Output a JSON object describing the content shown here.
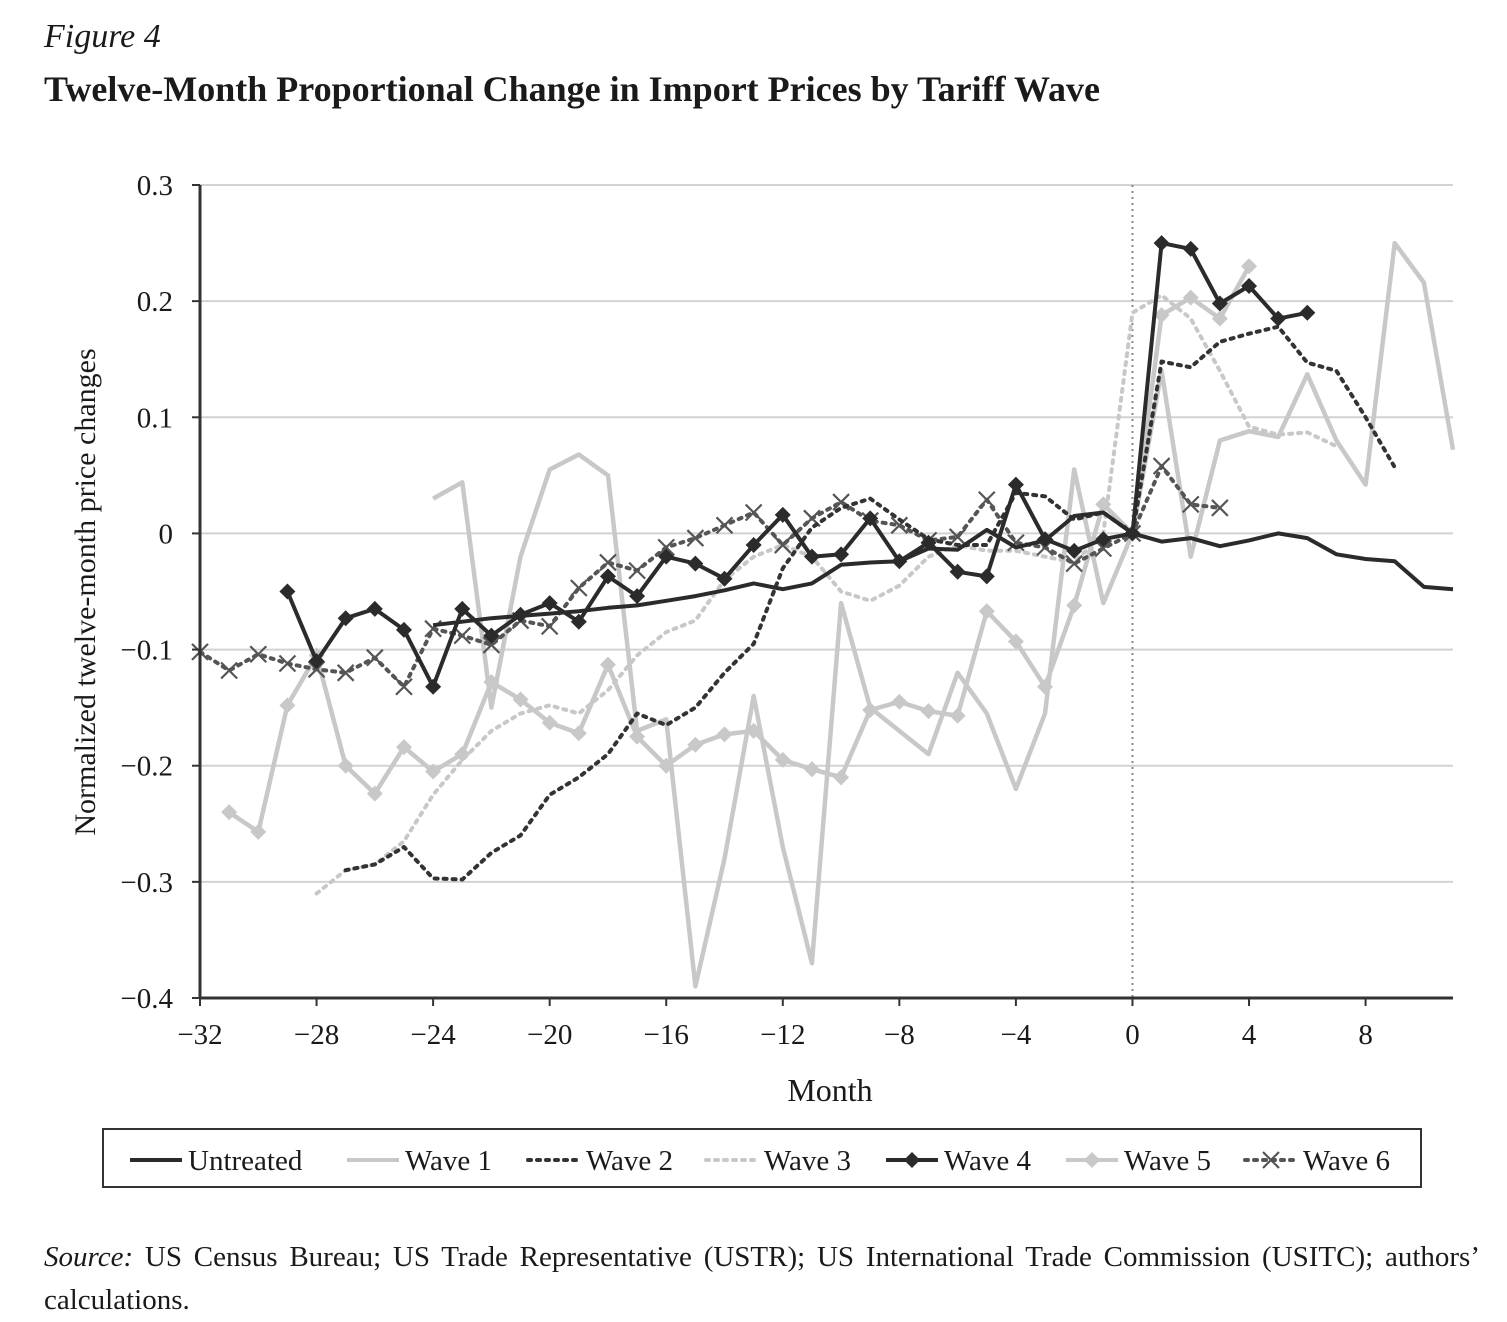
{
  "figure_label": "Figure 4",
  "title": "Twelve-Month Proportional Change in Import Prices by Tariff Wave",
  "source_label": "Source:",
  "source_text": "US Census Bureau; US Trade Representative (USTR); US International Trade Commission (USITC); authors’ calculations.",
  "chart_data": {
    "type": "line",
    "xlabel": "Month",
    "ylabel": "Normalized twelve-month price changes",
    "xlim": [
      -32,
      11
    ],
    "ylim": [
      -0.4,
      0.3
    ],
    "xticks": [
      -32,
      -28,
      -24,
      -20,
      -16,
      -12,
      -8,
      -4,
      0,
      4,
      8
    ],
    "xtick_labels": [
      "−32",
      "−28",
      "−24",
      "−20",
      "−16",
      "−12",
      "−8",
      "−4",
      "0",
      "4",
      "8"
    ],
    "yticks": [
      0.3,
      0.2,
      0.1,
      0,
      -0.1,
      -0.2,
      -0.3,
      -0.4
    ],
    "ytick_labels": [
      "0.3",
      "0.2",
      "0.1",
      "0",
      "−0.1",
      "−0.2",
      "−0.3",
      "−0.4"
    ],
    "grid": "horizontal",
    "vertical_marker_x": 0,
    "legend_position": "bottom",
    "series": [
      {
        "name": "Untreated",
        "color": "#2b2b2b",
        "style": "solid",
        "marker": "none",
        "x": [
          -24,
          -23,
          -22,
          -21,
          -20,
          -19,
          -18,
          -17,
          -16,
          -15,
          -14,
          -13,
          -12,
          -11,
          -10,
          -9,
          -8,
          -7,
          -6,
          -5,
          -4,
          -3,
          -2,
          -1,
          0,
          1,
          2,
          3,
          4,
          5,
          6,
          7,
          8,
          9,
          10,
          11
        ],
        "y": [
          -0.079,
          -0.076,
          -0.073,
          -0.071,
          -0.069,
          -0.067,
          -0.064,
          -0.062,
          -0.058,
          -0.054,
          -0.049,
          -0.043,
          -0.048,
          -0.043,
          -0.027,
          -0.025,
          -0.024,
          -0.013,
          -0.014,
          0.003,
          -0.012,
          -0.006,
          0.015,
          0.018,
          0.0,
          -0.007,
          -0.004,
          -0.011,
          -0.006,
          0.0,
          -0.004,
          -0.018,
          -0.022,
          -0.024,
          -0.046,
          -0.048
        ]
      },
      {
        "name": "Wave 1",
        "color": "#c8c8c8",
        "style": "solid",
        "marker": "none",
        "x": [
          -24,
          -23,
          -22,
          -21,
          -20,
          -19,
          -18,
          -17,
          -16,
          -15,
          -14,
          -13,
          -12,
          -11,
          -10,
          -9,
          -8,
          -7,
          -6,
          -5,
          -4,
          -3,
          -2,
          -1,
          0,
          1,
          2,
          3,
          4,
          5,
          6,
          7,
          8,
          9,
          10,
          11
        ],
        "y": [
          0.03,
          0.044,
          -0.15,
          -0.02,
          0.055,
          0.068,
          0.05,
          -0.17,
          -0.16,
          -0.39,
          -0.28,
          -0.14,
          -0.27,
          -0.37,
          -0.06,
          -0.15,
          -0.17,
          -0.19,
          -0.12,
          -0.155,
          -0.22,
          -0.155,
          0.055,
          -0.06,
          0.0,
          0.14,
          -0.02,
          0.08,
          0.088,
          0.083,
          0.137,
          0.08,
          0.042,
          0.25,
          0.216,
          0.072
        ]
      },
      {
        "name": "Wave 2",
        "color": "#333333",
        "style": "dotted",
        "marker": "none",
        "x": [
          -27,
          -26,
          -25,
          -24,
          -23,
          -22,
          -21,
          -20,
          -19,
          -18,
          -17,
          -16,
          -15,
          -14,
          -13,
          -12,
          -11,
          -10,
          -9,
          -8,
          -7,
          -6,
          -5,
          -4,
          -3,
          -2,
          -1,
          0,
          1,
          2,
          3,
          4,
          5,
          6,
          7,
          8,
          9
        ],
        "y": [
          -0.29,
          -0.285,
          -0.27,
          -0.297,
          -0.298,
          -0.275,
          -0.26,
          -0.225,
          -0.21,
          -0.19,
          -0.155,
          -0.165,
          -0.15,
          -0.12,
          -0.095,
          -0.03,
          0.005,
          0.022,
          0.03,
          0.012,
          -0.005,
          -0.01,
          -0.01,
          0.035,
          0.032,
          0.012,
          0.018,
          0.0,
          0.148,
          0.143,
          0.165,
          0.172,
          0.178,
          0.147,
          0.14,
          0.1,
          0.057
        ]
      },
      {
        "name": "Wave 3",
        "color": "#c8c8c8",
        "style": "dotted",
        "marker": "none",
        "x": [
          -28,
          -27,
          -26,
          -25,
          -24,
          -23,
          -22,
          -21,
          -20,
          -19,
          -18,
          -17,
          -16,
          -15,
          -14,
          -13,
          -12,
          -11,
          -10,
          -9,
          -8,
          -7,
          -6,
          -5,
          -4,
          -3,
          -2,
          -1,
          0,
          1,
          2,
          3,
          4,
          5,
          6,
          7
        ],
        "y": [
          -0.31,
          -0.29,
          -0.285,
          -0.265,
          -0.225,
          -0.195,
          -0.17,
          -0.155,
          -0.148,
          -0.155,
          -0.135,
          -0.105,
          -0.085,
          -0.075,
          -0.04,
          -0.02,
          -0.01,
          -0.02,
          -0.05,
          -0.058,
          -0.045,
          -0.02,
          -0.01,
          -0.015,
          -0.015,
          -0.02,
          -0.025,
          0.0,
          0.19,
          0.205,
          0.185,
          0.14,
          0.092,
          0.085,
          0.087,
          0.075
        ]
      },
      {
        "name": "Wave 4",
        "color": "#2b2b2b",
        "style": "solid",
        "marker": "diamond",
        "x": [
          -29,
          -28,
          -27,
          -26,
          -25,
          -24,
          -23,
          -22,
          -21,
          -20,
          -19,
          -18,
          -17,
          -16,
          -15,
          -14,
          -13,
          -12,
          -11,
          -10,
          -9,
          -8,
          -7,
          -6,
          -5,
          -4,
          -3,
          -2,
          -1,
          0,
          1,
          2,
          3,
          4,
          5,
          6
        ],
        "y": [
          -0.05,
          -0.11,
          -0.073,
          -0.065,
          -0.083,
          -0.132,
          -0.065,
          -0.088,
          -0.07,
          -0.06,
          -0.076,
          -0.037,
          -0.054,
          -0.02,
          -0.026,
          -0.039,
          -0.01,
          0.016,
          -0.02,
          -0.018,
          0.013,
          -0.024,
          -0.008,
          -0.033,
          -0.037,
          0.042,
          -0.005,
          -0.015,
          -0.005,
          0.0,
          0.25,
          0.245,
          0.198,
          0.213,
          0.185,
          0.19
        ]
      },
      {
        "name": "Wave 5",
        "color": "#c8c8c8",
        "style": "solid",
        "marker": "diamond",
        "x": [
          -31,
          -30,
          -29,
          -28,
          -27,
          -26,
          -25,
          -24,
          -23,
          -22,
          -21,
          -20,
          -19,
          -18,
          -17,
          -16,
          -15,
          -14,
          -13,
          -12,
          -11,
          -10,
          -9,
          -8,
          -7,
          -6,
          -5,
          -4,
          -3,
          -2,
          -1,
          0,
          1,
          2,
          3,
          4
        ],
        "y": [
          -0.24,
          -0.257,
          -0.148,
          -0.105,
          -0.2,
          -0.224,
          -0.184,
          -0.205,
          -0.19,
          -0.128,
          -0.143,
          -0.163,
          -0.172,
          -0.113,
          -0.175,
          -0.2,
          -0.182,
          -0.173,
          -0.17,
          -0.195,
          -0.203,
          -0.21,
          -0.152,
          -0.145,
          -0.153,
          -0.157,
          -0.067,
          -0.093,
          -0.132,
          -0.062,
          0.025,
          0.0,
          0.188,
          0.203,
          0.185,
          0.23
        ]
      },
      {
        "name": "Wave 6",
        "color": "#555555",
        "style": "dotted",
        "marker": "x",
        "x": [
          -32,
          -31,
          -30,
          -29,
          -28,
          -27,
          -26,
          -25,
          -24,
          -23,
          -22,
          -21,
          -20,
          -19,
          -18,
          -17,
          -16,
          -15,
          -14,
          -13,
          -12,
          -11,
          -10,
          -9,
          -8,
          -7,
          -6,
          -5,
          -4,
          -3,
          -2,
          -1,
          0,
          1,
          2,
          3
        ],
        "y": [
          -0.102,
          -0.118,
          -0.104,
          -0.112,
          -0.117,
          -0.12,
          -0.107,
          -0.132,
          -0.082,
          -0.088,
          -0.096,
          -0.075,
          -0.08,
          -0.047,
          -0.025,
          -0.032,
          -0.012,
          -0.004,
          0.007,
          0.018,
          -0.01,
          0.013,
          0.027,
          0.011,
          0.007,
          -0.006,
          -0.003,
          0.029,
          -0.008,
          -0.012,
          -0.026,
          -0.013,
          0.0,
          0.058,
          0.025,
          0.022
        ]
      }
    ]
  }
}
